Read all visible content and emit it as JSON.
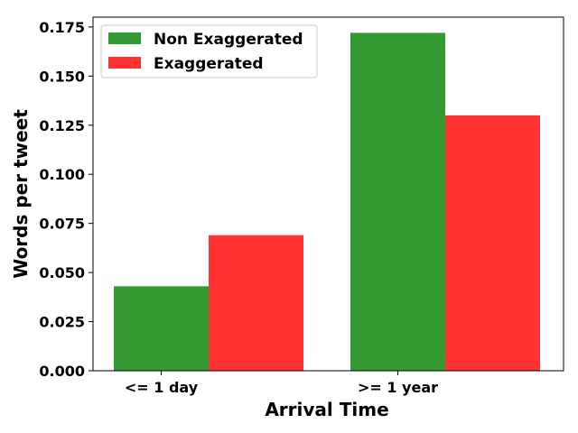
{
  "chart_data": {
    "type": "bar",
    "categories": [
      "<= 1 day",
      ">= 1 year"
    ],
    "series": [
      {
        "name": "Non Exaggerated",
        "values": [
          0.043,
          0.172
        ],
        "color": "#339933"
      },
      {
        "name": "Exaggerated",
        "values": [
          0.069,
          0.13
        ],
        "color": "#ff3333"
      }
    ],
    "xlabel": "Arrival Time",
    "ylabel": "Words per tweet",
    "ylim": [
      0,
      0.18
    ],
    "yticks": [
      "0.000",
      "0.025",
      "0.050",
      "0.075",
      "0.100",
      "0.125",
      "0.150",
      "0.175"
    ],
    "grid": false,
    "legend_position": "top-left"
  }
}
